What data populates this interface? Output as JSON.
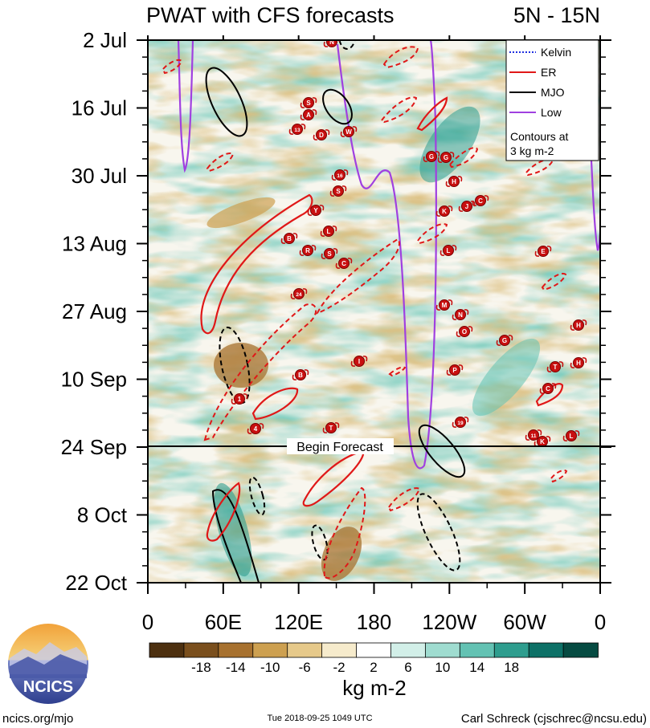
{
  "chart_data": {
    "type": "heatmap",
    "title": "PWAT with CFS forecasts",
    "region": "5N - 15N",
    "y_ticks": [
      "2 Jul",
      "16 Jul",
      "30 Jul",
      "13 Aug",
      "27 Aug",
      "10 Sep",
      "24 Sep",
      "8 Oct",
      "22 Oct"
    ],
    "x_ticks": [
      "0",
      "60E",
      "120E",
      "180",
      "120W",
      "60W",
      "0"
    ],
    "x_range": [
      0,
      360
    ],
    "y_range_days": [
      0,
      112
    ],
    "forecast_label": "Begin Forecast",
    "forecast_start_day": 84,
    "colorbar": {
      "tick_labels": [
        "-18",
        "-14",
        "-10",
        "-6",
        "-2",
        "2",
        "6",
        "10",
        "14",
        "18"
      ],
      "colors": [
        "#4d3010",
        "#7a4f1d",
        "#a7712f",
        "#cda050",
        "#e6c98a",
        "#f6ebcc",
        "#ffffff",
        "#d2efe8",
        "#9fdcd0",
        "#63c2b3",
        "#2e9d8e",
        "#0d7167",
        "#064b42"
      ],
      "units": "kg m-2"
    },
    "legend": {
      "entries": [
        {
          "name": "Kelvin",
          "color": "#2030e0",
          "style": "dotted"
        },
        {
          "name": "ER",
          "color": "#e01818",
          "style": "solid"
        },
        {
          "name": "MJO",
          "color": "#000000",
          "style": "solid"
        },
        {
          "name": "Low",
          "color": "#a040e0",
          "style": "solid"
        }
      ],
      "note": [
        "Contours at",
        "3 kg m-2"
      ],
      "placement": "top-right"
    },
    "storm_labels": [
      "N",
      "S",
      "A",
      "13",
      "D",
      "W",
      "G",
      "G",
      "H",
      "16",
      "S",
      "Y",
      "K",
      "J",
      "C",
      "L",
      "B",
      "R",
      "S",
      "C",
      "L",
      "E",
      "24",
      "M",
      "N",
      "O",
      "G",
      "H",
      "I",
      "B",
      "P",
      "T",
      "H",
      "1",
      "19",
      "4",
      "T",
      "11",
      "K",
      "L",
      "C"
    ]
  },
  "footer": {
    "logo_text": "NCICS",
    "left": "ncics.org/mjo",
    "center": "Tue 2018-09-25 1049 UTC",
    "right": "Carl Schreck (cjschrec@ncsu.edu)"
  }
}
